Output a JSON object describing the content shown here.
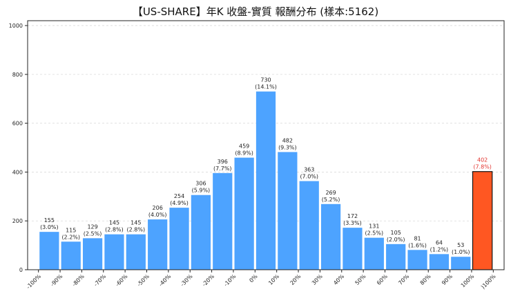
{
  "chart_data": {
    "type": "bar",
    "title": "【US-SHARE】年K 收盤-實質 報酬分布 (樣本:5162)",
    "xlabel": "",
    "ylabel": "",
    "ylim": [
      0,
      1020
    ],
    "yticks": [
      0,
      200,
      400,
      600,
      800,
      1000
    ],
    "grid": "horizontal",
    "xticks": [
      "-100%",
      "-90%",
      "-80%",
      "-70%",
      "-60%",
      "-50%",
      "-40%",
      "-30%",
      "-20%",
      "-10%",
      "0%",
      "10%",
      "20%",
      "30%",
      "40%",
      "50%",
      "60%",
      "70%",
      "80%",
      "90%",
      "100%",
      ")100%"
    ],
    "values": [
      155,
      115,
      129,
      145,
      145,
      206,
      254,
      306,
      396,
      459,
      730,
      482,
      363,
      269,
      172,
      131,
      105,
      81,
      64,
      53,
      402
    ],
    "percents": [
      "(3.0%)",
      "(2.2%)",
      "(2.5%)",
      "(2.8%)",
      "(2.8%)",
      "(4.0%)",
      "(4.9%)",
      "(5.9%)",
      "(7.7%)",
      "(8.9%)",
      "(14.1%)",
      "(9.3%)",
      "(7.0%)",
      "(5.2%)",
      "(3.3%)",
      "(2.5%)",
      "(2.0%)",
      "(1.6%)",
      "(1.2%)",
      "(1.0%)",
      "(7.8%)"
    ],
    "highlight_index": 20,
    "colors": {
      "bar": "#4da3ff",
      "highlight": "#ff5722",
      "highlight_edge": "#111111",
      "highlight_label": "#e3342f",
      "grid": "#d9d9d9"
    }
  }
}
